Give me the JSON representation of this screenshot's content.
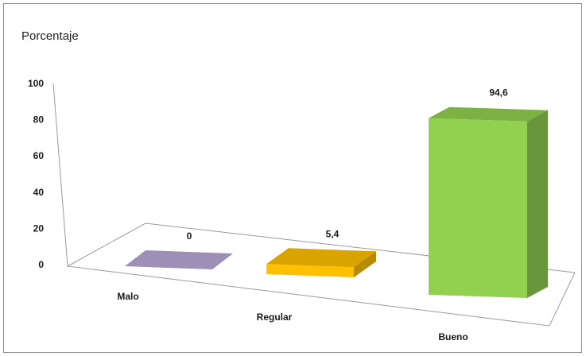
{
  "chart_data": {
    "type": "bar",
    "title": "",
    "ylabel": "Porcentaje",
    "xlabel": "",
    "categories": [
      "Malo",
      "Regular",
      "Bueno"
    ],
    "values": [
      0,
      5.4,
      94.6
    ],
    "value_labels": [
      "0",
      "5,4",
      "94,6"
    ],
    "yticks": [
      0,
      20,
      40,
      60,
      80,
      100
    ],
    "ylim": [
      0,
      100
    ],
    "grid": false,
    "legend": "none",
    "colors": [
      "#9d8fb5",
      "#ffc000",
      "#92d050"
    ]
  }
}
